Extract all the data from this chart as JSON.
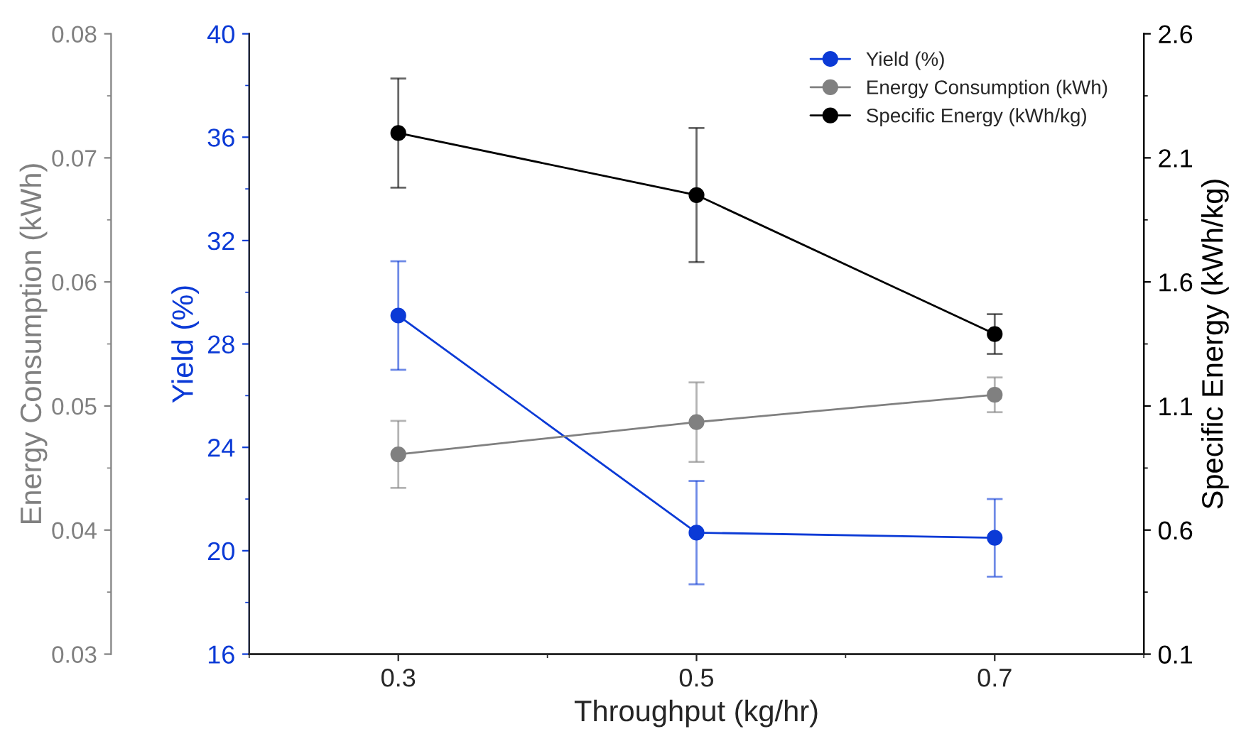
{
  "chart_data": {
    "type": "line",
    "xlabel": "Throughput (kg/hr)",
    "ylabel": "Yield (%)",
    "y2label": "Specific Energy (kWh/kg)",
    "y3label": "Energy Consumption (kWh)",
    "x": [
      0.3,
      0.5,
      0.7
    ],
    "xlim": [
      0.2,
      0.8
    ],
    "xticks": [
      0.3,
      0.5,
      0.7
    ],
    "ylim": [
      16,
      40
    ],
    "yticks": [
      16,
      20,
      24,
      28,
      32,
      36,
      40
    ],
    "y2lim": [
      0.1,
      2.6
    ],
    "y2ticks": [
      0.1,
      0.6,
      1.1,
      1.6,
      2.1,
      2.6
    ],
    "y3lim": [
      0.03,
      0.08
    ],
    "y3ticks": [
      0.03,
      0.04,
      0.05,
      0.06,
      0.07,
      0.08
    ],
    "marker": "circle",
    "line_style": "solid",
    "legend": "top right",
    "grid": false,
    "series": [
      {
        "name": "Yield (%)",
        "color": "#0b3ad6",
        "axis": "y",
        "values": [
          29.1,
          20.7,
          20.5
        ],
        "errors": [
          2.1,
          2.0,
          1.5
        ]
      },
      {
        "name": "Energy Consumption (kWh)",
        "color": "#808080",
        "axis": "y3",
        "values": [
          0.0461,
          0.0487,
          0.0509
        ],
        "errors": [
          0.0027,
          0.0032,
          0.0014
        ]
      },
      {
        "name": "Specific Energy (kWh/kg)",
        "color": "#000000",
        "axis": "y2",
        "values": [
          2.2,
          1.95,
          1.39
        ],
        "errors": [
          0.22,
          0.27,
          0.08
        ]
      }
    ]
  }
}
